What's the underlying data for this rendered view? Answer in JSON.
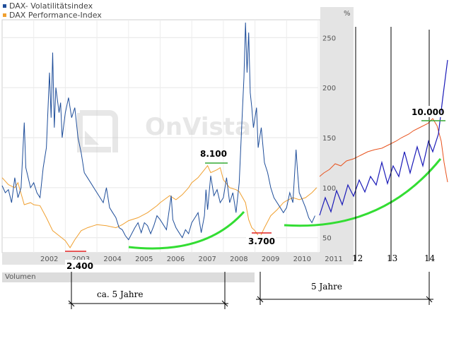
{
  "legend": {
    "items": [
      {
        "label": "DAX- Volatilitätsindex",
        "color": "#1f4e9a"
      },
      {
        "label": "DAX Performance-Index",
        "color": "#f0a030"
      }
    ]
  },
  "axis": {
    "unit": "%",
    "y_ticks": [
      "250",
      "200",
      "150",
      "100",
      "50"
    ],
    "x_ticks": [
      "2002",
      "2003",
      "2004",
      "2005",
      "2006",
      "2007",
      "2008",
      "2009",
      "2010",
      "2011"
    ],
    "extension_ticks": [
      "12",
      "13",
      "14"
    ]
  },
  "watermark": "OnVista",
  "volumen_label": "Volumen",
  "annotations": {
    "low_2003": "2.400",
    "high_2007": "8.100",
    "low_2009": "3.700",
    "target": "10.000",
    "span_left": "ca. 5 Jahre",
    "span_right": "5 Jahre"
  },
  "colors": {
    "vdax": "#1f4e9a",
    "dax": "#f0a030",
    "trend": "#33dd33",
    "projection_dax": "#e8531e",
    "projection_vdax": "#1a1ab8"
  },
  "chart_data": {
    "type": "line",
    "x_label": "",
    "y_label": "",
    "y_unit": "%",
    "vdax_range": [
      35,
      265
    ],
    "series": [
      {
        "name": "DAX- Volatilitätsindex",
        "points": [
          [
            2001.0,
            102
          ],
          [
            2001.1,
            95
          ],
          [
            2001.2,
            98
          ],
          [
            2001.3,
            85
          ],
          [
            2001.4,
            110
          ],
          [
            2001.5,
            90
          ],
          [
            2001.6,
            100
          ],
          [
            2001.7,
            165
          ],
          [
            2001.75,
            120
          ],
          [
            2001.9,
            100
          ],
          [
            2002.0,
            105
          ],
          [
            2002.1,
            95
          ],
          [
            2002.2,
            90
          ],
          [
            2002.3,
            120
          ],
          [
            2002.4,
            140
          ],
          [
            2002.5,
            215
          ],
          [
            2002.55,
            170
          ],
          [
            2002.6,
            235
          ],
          [
            2002.65,
            160
          ],
          [
            2002.7,
            200
          ],
          [
            2002.8,
            175
          ],
          [
            2002.85,
            185
          ],
          [
            2002.9,
            150
          ],
          [
            2003.0,
            175
          ],
          [
            2003.1,
            190
          ],
          [
            2003.2,
            170
          ],
          [
            2003.3,
            180
          ],
          [
            2003.4,
            150
          ],
          [
            2003.5,
            135
          ],
          [
            2003.6,
            115
          ],
          [
            2003.7,
            110
          ],
          [
            2003.8,
            105
          ],
          [
            2003.9,
            100
          ],
          [
            2004.0,
            95
          ],
          [
            2004.2,
            85
          ],
          [
            2004.3,
            100
          ],
          [
            2004.4,
            80
          ],
          [
            2004.5,
            75
          ],
          [
            2004.6,
            70
          ],
          [
            2004.7,
            60
          ],
          [
            2004.8,
            58
          ],
          [
            2004.9,
            52
          ],
          [
            2005.0,
            48
          ],
          [
            2005.2,
            60
          ],
          [
            2005.3,
            65
          ],
          [
            2005.4,
            55
          ],
          [
            2005.5,
            65
          ],
          [
            2005.6,
            62
          ],
          [
            2005.7,
            54
          ],
          [
            2005.8,
            62
          ],
          [
            2005.9,
            72
          ],
          [
            2006.0,
            68
          ],
          [
            2006.2,
            58
          ],
          [
            2006.35,
            92
          ],
          [
            2006.4,
            68
          ],
          [
            2006.5,
            60
          ],
          [
            2006.6,
            55
          ],
          [
            2006.7,
            50
          ],
          [
            2006.8,
            58
          ],
          [
            2006.9,
            54
          ],
          [
            2007.0,
            65
          ],
          [
            2007.1,
            70
          ],
          [
            2007.2,
            75
          ],
          [
            2007.3,
            55
          ],
          [
            2007.4,
            72
          ],
          [
            2007.45,
            98
          ],
          [
            2007.5,
            78
          ],
          [
            2007.6,
            112
          ],
          [
            2007.7,
            92
          ],
          [
            2007.8,
            98
          ],
          [
            2007.9,
            85
          ],
          [
            2008.0,
            90
          ],
          [
            2008.1,
            110
          ],
          [
            2008.2,
            85
          ],
          [
            2008.3,
            95
          ],
          [
            2008.4,
            75
          ],
          [
            2008.5,
            105
          ],
          [
            2008.6,
            175
          ],
          [
            2008.65,
            210
          ],
          [
            2008.7,
            265
          ],
          [
            2008.75,
            215
          ],
          [
            2008.8,
            255
          ],
          [
            2008.85,
            195
          ],
          [
            2008.9,
            180
          ],
          [
            2008.95,
            160
          ],
          [
            2009.0,
            170
          ],
          [
            2009.05,
            180
          ],
          [
            2009.1,
            140
          ],
          [
            2009.2,
            160
          ],
          [
            2009.3,
            125
          ],
          [
            2009.4,
            115
          ],
          [
            2009.5,
            100
          ],
          [
            2009.6,
            90
          ],
          [
            2009.7,
            85
          ],
          [
            2009.8,
            80
          ],
          [
            2009.9,
            75
          ],
          [
            2010.0,
            80
          ],
          [
            2010.1,
            95
          ],
          [
            2010.2,
            85
          ],
          [
            2010.3,
            138
          ],
          [
            2010.35,
            115
          ],
          [
            2010.4,
            95
          ],
          [
            2010.5,
            88
          ],
          [
            2010.6,
            80
          ],
          [
            2010.7,
            70
          ],
          [
            2010.8,
            65
          ],
          [
            2010.9,
            72
          ]
        ]
      },
      {
        "name": "DAX Performance-Index",
        "points": [
          [
            2001.0,
            110
          ],
          [
            2001.2,
            103
          ],
          [
            2001.4,
            100
          ],
          [
            2001.5,
            105
          ],
          [
            2001.7,
            83
          ],
          [
            2001.9,
            85
          ],
          [
            2002.0,
            83
          ],
          [
            2002.2,
            82
          ],
          [
            2002.4,
            70
          ],
          [
            2002.6,
            57
          ],
          [
            2002.8,
            52
          ],
          [
            2003.0,
            47
          ],
          [
            2003.15,
            40
          ],
          [
            2003.3,
            48
          ],
          [
            2003.5,
            57
          ],
          [
            2003.7,
            60
          ],
          [
            2003.9,
            62
          ],
          [
            2004.0,
            63
          ],
          [
            2004.3,
            62
          ],
          [
            2004.6,
            60
          ],
          [
            2004.8,
            63
          ],
          [
            2005.0,
            67
          ],
          [
            2005.3,
            70
          ],
          [
            2005.6,
            75
          ],
          [
            2005.9,
            82
          ],
          [
            2006.0,
            85
          ],
          [
            2006.3,
            92
          ],
          [
            2006.5,
            88
          ],
          [
            2006.7,
            93
          ],
          [
            2006.9,
            100
          ],
          [
            2007.0,
            105
          ],
          [
            2007.2,
            110
          ],
          [
            2007.4,
            118
          ],
          [
            2007.5,
            122
          ],
          [
            2007.6,
            115
          ],
          [
            2007.8,
            118
          ],
          [
            2007.9,
            120
          ],
          [
            2008.0,
            108
          ],
          [
            2008.2,
            100
          ],
          [
            2008.4,
            98
          ],
          [
            2008.5,
            96
          ],
          [
            2008.7,
            85
          ],
          [
            2008.8,
            68
          ],
          [
            2008.9,
            60
          ],
          [
            2009.0,
            57
          ],
          [
            2009.15,
            50
          ],
          [
            2009.3,
            60
          ],
          [
            2009.5,
            72
          ],
          [
            2009.7,
            78
          ],
          [
            2009.9,
            85
          ],
          [
            2010.0,
            87
          ],
          [
            2010.2,
            90
          ],
          [
            2010.4,
            88
          ],
          [
            2010.6,
            90
          ],
          [
            2010.8,
            95
          ],
          [
            2010.95,
            100
          ]
        ]
      }
    ]
  }
}
